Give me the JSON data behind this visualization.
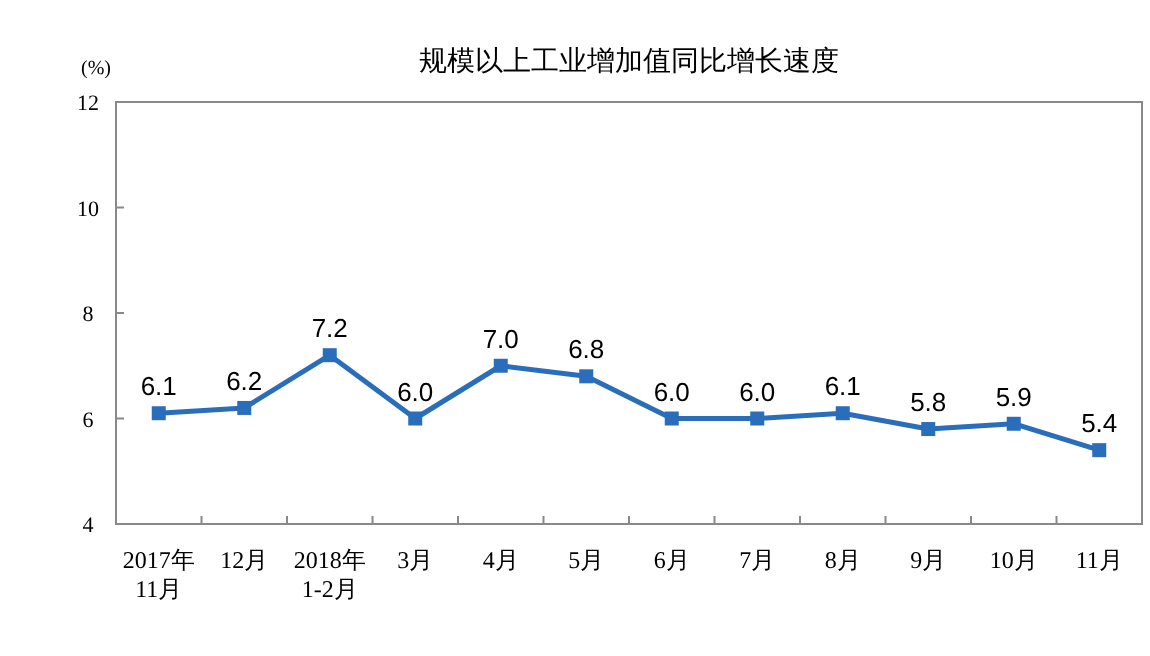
{
  "chart_data": {
    "type": "line",
    "title": "规模以上工业增加值同比增长速度",
    "ylabel": "(%)",
    "categories": [
      "2017年\n11月",
      "12月",
      "2018年\n1-2月",
      "3月",
      "4月",
      "5月",
      "6月",
      "7月",
      "8月",
      "9月",
      "10月",
      "11月"
    ],
    "series": [
      {
        "color": "#2a6ebb",
        "values": [
          6.1,
          6.2,
          7.2,
          6.0,
          7.0,
          6.8,
          6.0,
          6.0,
          6.1,
          5.8,
          5.9,
          5.4
        ]
      }
    ],
    "value_labels": [
      "6.1",
      "6.2",
      "7.2",
      "6.0",
      "7.0",
      "6.8",
      "6.0",
      "6.0",
      "6.1",
      "5.8",
      "5.9",
      "5.4"
    ],
    "ylim": [
      4,
      12
    ],
    "yticks": [
      4,
      6,
      8,
      10,
      12
    ],
    "marker": "square",
    "line_style": "solid"
  }
}
